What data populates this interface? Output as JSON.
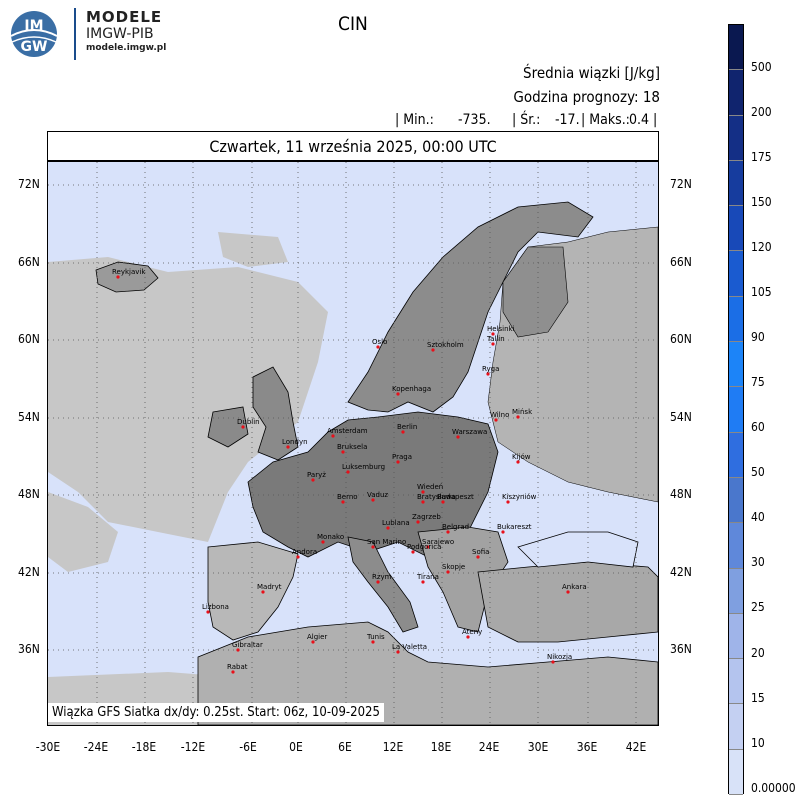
{
  "logo": {
    "badge_text_top": "IM",
    "badge_text_bottom": "GW",
    "title": "MODELE",
    "subtitle": "IMGW-PIB",
    "url": "modele.imgw.pl"
  },
  "parameter_code": "CIN",
  "header": {
    "line1": "Średnia wiązki [J/kg]",
    "line2": "Godzina prognozy: 18"
  },
  "stats": {
    "min_label": "| Min.:",
    "min_value": "-735.",
    "avg_label": "| Śr.:",
    "avg_value": "-17.",
    "max_label": "| Maks.:",
    "max_value": "0.4 |"
  },
  "map": {
    "title": "Czwartek, 11 września 2025, 00:00 UTC",
    "model_info": "Wiązka GFS Siatka dx/dy: 0.25st. Start: 06z, 10-09-2025",
    "lat_labels": [
      "72N",
      "66N",
      "60N",
      "54N",
      "48N",
      "42N",
      "36N"
    ],
    "lon_labels": [
      "-30E",
      "-24E",
      "-18E",
      "-12E",
      "-6E",
      "0E",
      "6E",
      "12E",
      "18E",
      "24E",
      "30E",
      "36E",
      "42E"
    ],
    "cities": [
      {
        "name": "Reykjavik"
      },
      {
        "name": "Oslo"
      },
      {
        "name": "Sztokholm"
      },
      {
        "name": "Helsinki"
      },
      {
        "name": "Tallin"
      },
      {
        "name": "Ryga"
      },
      {
        "name": "Kopenhaga"
      },
      {
        "name": "Wilno"
      },
      {
        "name": "Mińsk"
      },
      {
        "name": "Dublin"
      },
      {
        "name": "Londyn"
      },
      {
        "name": "Amsterdam"
      },
      {
        "name": "Bruksela"
      },
      {
        "name": "Berlin"
      },
      {
        "name": "Warszawa"
      },
      {
        "name": "Luksemburg"
      },
      {
        "name": "Paryż"
      },
      {
        "name": "Praga"
      },
      {
        "name": "Kijów"
      },
      {
        "name": "Wiedeń"
      },
      {
        "name": "Bratysława"
      },
      {
        "name": "Budapeszt"
      },
      {
        "name": "Berno"
      },
      {
        "name": "Vaduz"
      },
      {
        "name": "Kiszyniów"
      },
      {
        "name": "Lublana"
      },
      {
        "name": "Zagrzeb"
      },
      {
        "name": "Monako"
      },
      {
        "name": "Belgrad"
      },
      {
        "name": "Bukareszt"
      },
      {
        "name": "San Marino"
      },
      {
        "name": "Sarajewo"
      },
      {
        "name": "Andora"
      },
      {
        "name": "Podgorica"
      },
      {
        "name": "Sofia"
      },
      {
        "name": "Rzym"
      },
      {
        "name": "Skopje"
      },
      {
        "name": "Tirana"
      },
      {
        "name": "Madryt"
      },
      {
        "name": "Lizbona"
      },
      {
        "name": "Ankara"
      },
      {
        "name": "Ateny"
      },
      {
        "name": "Algier"
      },
      {
        "name": "Tunis"
      },
      {
        "name": "La Valetta"
      },
      {
        "name": "Gibraltar"
      },
      {
        "name": "Nikozja"
      },
      {
        "name": "Rabat"
      }
    ]
  },
  "colorbar": {
    "labels": [
      "500",
      "200",
      "175",
      "150",
      "120",
      "105",
      "90",
      "75",
      "60",
      "50",
      "40",
      "30",
      "25",
      "20",
      "15",
      "10",
      "0.00000"
    ],
    "colors": [
      "#d8e2f8",
      "#c4d0f2",
      "#b4c4ee",
      "#9fb4e9",
      "#7f9fe0",
      "#5f88da",
      "#4a77cc",
      "#2f6ee0",
      "#1f7cf4",
      "#1c84f8",
      "#1b6ee6",
      "#1a5bd0",
      "#1849b8",
      "#163c9e",
      "#142f86",
      "#10246e",
      "#0a1850"
    ],
    "border": "#000000"
  },
  "map_colors": {
    "ocean": "#d8e2fa",
    "land_low": "#bfbfbf",
    "cin_field": "#c4c4c4",
    "city_dot": "#e8101a"
  }
}
